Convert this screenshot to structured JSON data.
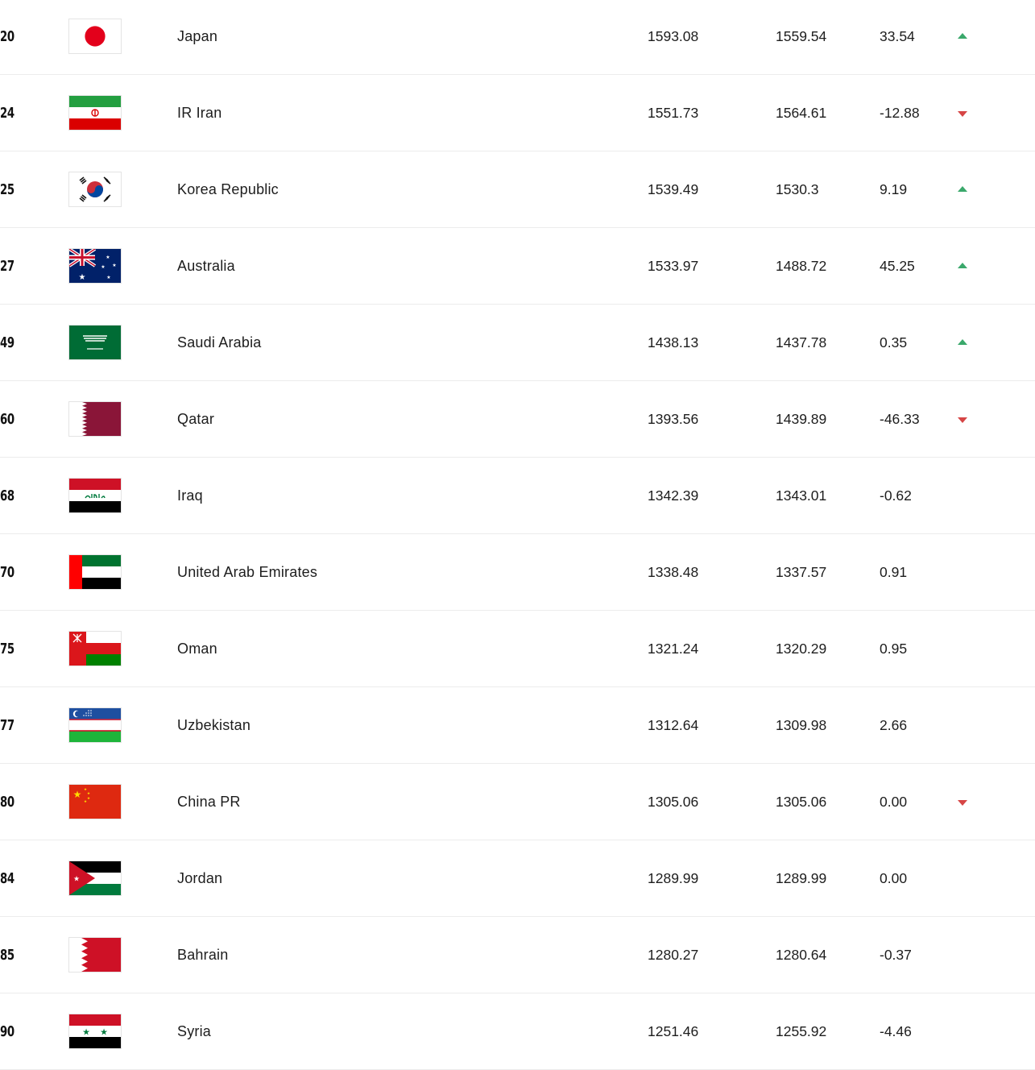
{
  "colors": {
    "up": "#3aa86b",
    "down": "#d64545"
  },
  "rows": [
    {
      "rank": "20",
      "flag": "japan-flag-icon",
      "team": "Japan",
      "total_points": "1593.08",
      "previous_points": "1559.54",
      "change": "33.54",
      "trend": "up"
    },
    {
      "rank": "24",
      "flag": "iran-flag-icon",
      "team": "IR Iran",
      "total_points": "1551.73",
      "previous_points": "1564.61",
      "change": "-12.88",
      "trend": "down"
    },
    {
      "rank": "25",
      "flag": "korea-flag-icon",
      "team": "Korea Republic",
      "total_points": "1539.49",
      "previous_points": "1530.3",
      "change": "9.19",
      "trend": "up"
    },
    {
      "rank": "27",
      "flag": "australia-flag-icon",
      "team": "Australia",
      "total_points": "1533.97",
      "previous_points": "1488.72",
      "change": "45.25",
      "trend": "up"
    },
    {
      "rank": "49",
      "flag": "saudi-arabia-flag-icon",
      "team": "Saudi Arabia",
      "total_points": "1438.13",
      "previous_points": "1437.78",
      "change": "0.35",
      "trend": "up"
    },
    {
      "rank": "60",
      "flag": "qatar-flag-icon",
      "team": "Qatar",
      "total_points": "1393.56",
      "previous_points": "1439.89",
      "change": "-46.33",
      "trend": "down"
    },
    {
      "rank": "68",
      "flag": "iraq-flag-icon",
      "team": "Iraq",
      "total_points": "1342.39",
      "previous_points": "1343.01",
      "change": "-0.62",
      "trend": "none"
    },
    {
      "rank": "70",
      "flag": "uae-flag-icon",
      "team": "United Arab Emirates",
      "total_points": "1338.48",
      "previous_points": "1337.57",
      "change": "0.91",
      "trend": "none"
    },
    {
      "rank": "75",
      "flag": "oman-flag-icon",
      "team": "Oman",
      "total_points": "1321.24",
      "previous_points": "1320.29",
      "change": "0.95",
      "trend": "none"
    },
    {
      "rank": "77",
      "flag": "uzbekistan-flag-icon",
      "team": "Uzbekistan",
      "total_points": "1312.64",
      "previous_points": "1309.98",
      "change": "2.66",
      "trend": "none"
    },
    {
      "rank": "80",
      "flag": "china-flag-icon",
      "team": "China PR",
      "total_points": "1305.06",
      "previous_points": "1305.06",
      "change": "0.00",
      "trend": "down"
    },
    {
      "rank": "84",
      "flag": "jordan-flag-icon",
      "team": "Jordan",
      "total_points": "1289.99",
      "previous_points": "1289.99",
      "change": "0.00",
      "trend": "none"
    },
    {
      "rank": "85",
      "flag": "bahrain-flag-icon",
      "team": "Bahrain",
      "total_points": "1280.27",
      "previous_points": "1280.64",
      "change": "-0.37",
      "trend": "none"
    },
    {
      "rank": "90",
      "flag": "syria-flag-icon",
      "team": "Syria",
      "total_points": "1251.46",
      "previous_points": "1255.92",
      "change": "-4.46",
      "trend": "none"
    }
  ]
}
